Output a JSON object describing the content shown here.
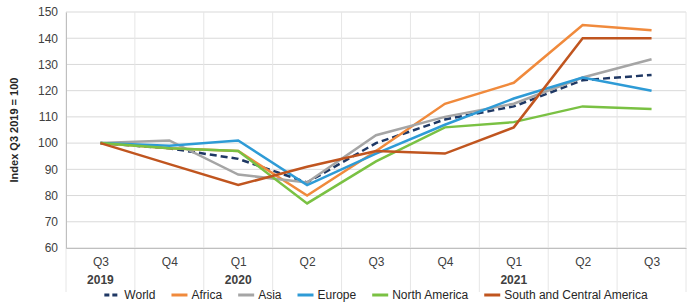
{
  "chart_data": {
    "type": "line",
    "y_label": "Index Q3 2019 = 100",
    "categories": [
      "Q3",
      "Q4",
      "Q1",
      "Q2",
      "Q3",
      "Q4",
      "Q1",
      "Q2",
      "Q3"
    ],
    "year_labels": [
      "2019",
      null,
      "2020",
      null,
      null,
      null,
      "2021",
      null,
      null
    ],
    "ylim": [
      60,
      150
    ],
    "yticks": [
      60,
      70,
      80,
      90,
      100,
      110,
      120,
      130,
      140,
      150
    ],
    "grid": true,
    "legend": "bottom",
    "series": [
      {
        "name": "World",
        "color": "#1f3864",
        "line_style": "dashed",
        "values": [
          100,
          98,
          94,
          85,
          100,
          109,
          114,
          124,
          126
        ]
      },
      {
        "name": "Africa",
        "color": "#f08a3c",
        "line_style": "solid",
        "values": [
          100,
          98,
          97,
          80,
          97,
          115,
          123,
          145,
          143
        ]
      },
      {
        "name": "Asia",
        "color": "#a5a5a5",
        "line_style": "solid",
        "values": [
          100,
          101,
          88,
          85,
          103,
          110,
          115,
          125,
          132
        ]
      },
      {
        "name": "Europe",
        "color": "#2e9bd6",
        "line_style": "solid",
        "values": [
          100,
          99,
          101,
          84,
          96,
          107,
          117,
          125,
          120
        ]
      },
      {
        "name": "North America",
        "color": "#7ac143",
        "line_style": "solid",
        "values": [
          100,
          98,
          97,
          77,
          93,
          106,
          108,
          114,
          113
        ]
      },
      {
        "name": "South and Central America",
        "color": "#c0551f",
        "line_style": "solid",
        "values": [
          100,
          92,
          84,
          91,
          97,
          96,
          106,
          140,
          140
        ]
      }
    ]
  }
}
